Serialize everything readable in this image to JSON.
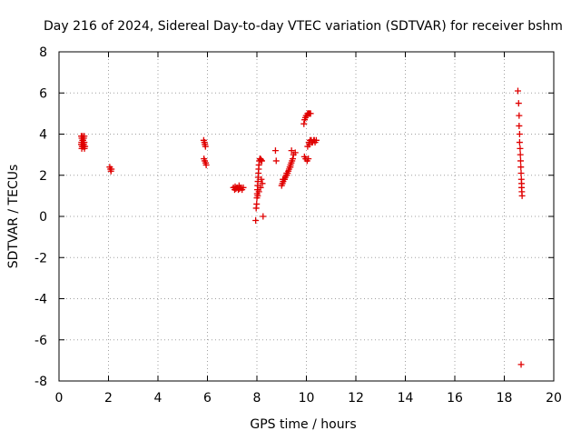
{
  "chart_data": {
    "type": "scatter",
    "title": "Day 216 of 2024, Sidereal Day-to-day VTEC variation (SDTVAR) for receiver bshm",
    "xlabel": "GPS time / hours",
    "ylabel": "SDTVAR / TECUs",
    "xlim": [
      0,
      20
    ],
    "ylim": [
      -8,
      8
    ],
    "xticks": [
      0,
      2,
      4,
      6,
      8,
      10,
      12,
      14,
      16,
      18,
      20
    ],
    "yticks": [
      -8,
      -6,
      -4,
      -2,
      0,
      2,
      4,
      6,
      8
    ],
    "grid": true,
    "marker": "plus",
    "color": "#e00000",
    "series": [
      {
        "x": [
          0.9,
          0.92,
          0.95,
          0.97,
          1.0,
          1.02,
          0.9,
          0.93,
          0.96,
          1.0,
          1.03,
          0.91,
          0.95,
          1.0,
          1.05,
          0.92,
          0.97,
          1.02,
          2.05,
          2.08,
          2.1,
          2.12,
          5.85,
          5.88,
          5.9,
          5.92,
          5.86,
          5.89,
          5.93,
          5.95,
          7.05,
          7.1,
          7.15,
          7.2,
          7.25,
          7.3,
          7.35,
          7.4,
          7.45,
          7.12,
          7.28,
          7.95,
          7.97,
          7.99,
          8.0,
          8.01,
          8.02,
          8.03,
          8.04,
          8.05,
          8.06,
          8.07,
          8.08,
          8.1,
          8.12,
          8.14,
          8.16,
          8.18,
          8.2,
          8.03,
          8.08,
          8.15,
          8.22,
          8.25,
          8.18,
          8.75,
          8.78,
          9.0,
          9.03,
          9.06,
          9.09,
          9.12,
          9.15,
          9.18,
          9.21,
          9.24,
          9.27,
          9.3,
          9.33,
          9.36,
          9.39,
          9.42,
          9.45,
          9.4,
          9.48,
          9.55,
          9.05,
          9.2,
          9.35,
          9.9,
          9.93,
          9.96,
          9.99,
          10.02,
          10.05,
          10.08,
          10.11,
          10.14,
          10.17,
          9.92,
          9.97,
          10.03,
          10.08,
          10.05,
          10.1,
          10.15,
          10.2,
          10.25,
          10.3,
          10.35,
          10.4,
          10.12,
          10.22,
          10.32,
          18.55,
          18.58,
          18.6,
          18.6,
          18.62,
          18.62,
          18.64,
          18.65,
          18.66,
          18.67,
          18.68,
          18.69,
          18.7,
          18.7,
          18.71,
          18.72,
          18.68
        ],
        "y": [
          3.9,
          3.8,
          3.9,
          3.7,
          3.8,
          3.9,
          3.5,
          3.4,
          3.5,
          3.4,
          3.3,
          3.6,
          3.7,
          3.5,
          3.4,
          3.3,
          3.4,
          3.6,
          2.4,
          2.3,
          2.2,
          2.3,
          3.7,
          3.6,
          3.5,
          3.4,
          2.8,
          2.7,
          2.6,
          2.5,
          1.4,
          1.3,
          1.35,
          1.4,
          1.3,
          1.35,
          1.4,
          1.3,
          1.4,
          1.45,
          1.5,
          -0.2,
          0.4,
          0.6,
          0.9,
          1.1,
          1.3,
          1.5,
          1.7,
          1.9,
          2.1,
          2.3,
          2.5,
          2.7,
          2.8,
          2.8,
          2.75,
          2.7,
          2.7,
          1.0,
          1.2,
          1.4,
          1.6,
          0.0,
          1.8,
          3.2,
          2.7,
          1.5,
          1.6,
          1.7,
          1.8,
          1.8,
          1.9,
          2.0,
          2.0,
          2.1,
          2.2,
          2.3,
          2.4,
          2.5,
          2.6,
          2.7,
          2.8,
          3.2,
          3.0,
          3.1,
          1.8,
          2.1,
          2.4,
          4.5,
          4.7,
          4.8,
          4.9,
          4.9,
          5.0,
          5.0,
          5.0,
          5.0,
          5.0,
          2.9,
          2.8,
          2.7,
          2.8,
          3.4,
          3.6,
          3.7,
          3.7,
          3.6,
          3.7,
          3.6,
          3.7,
          3.5,
          3.6,
          3.7,
          6.1,
          5.5,
          4.9,
          4.4,
          4.0,
          3.6,
          3.3,
          3.0,
          2.7,
          2.4,
          2.1,
          1.8,
          1.6,
          1.4,
          1.2,
          1.0,
          -7.2
        ]
      }
    ]
  }
}
